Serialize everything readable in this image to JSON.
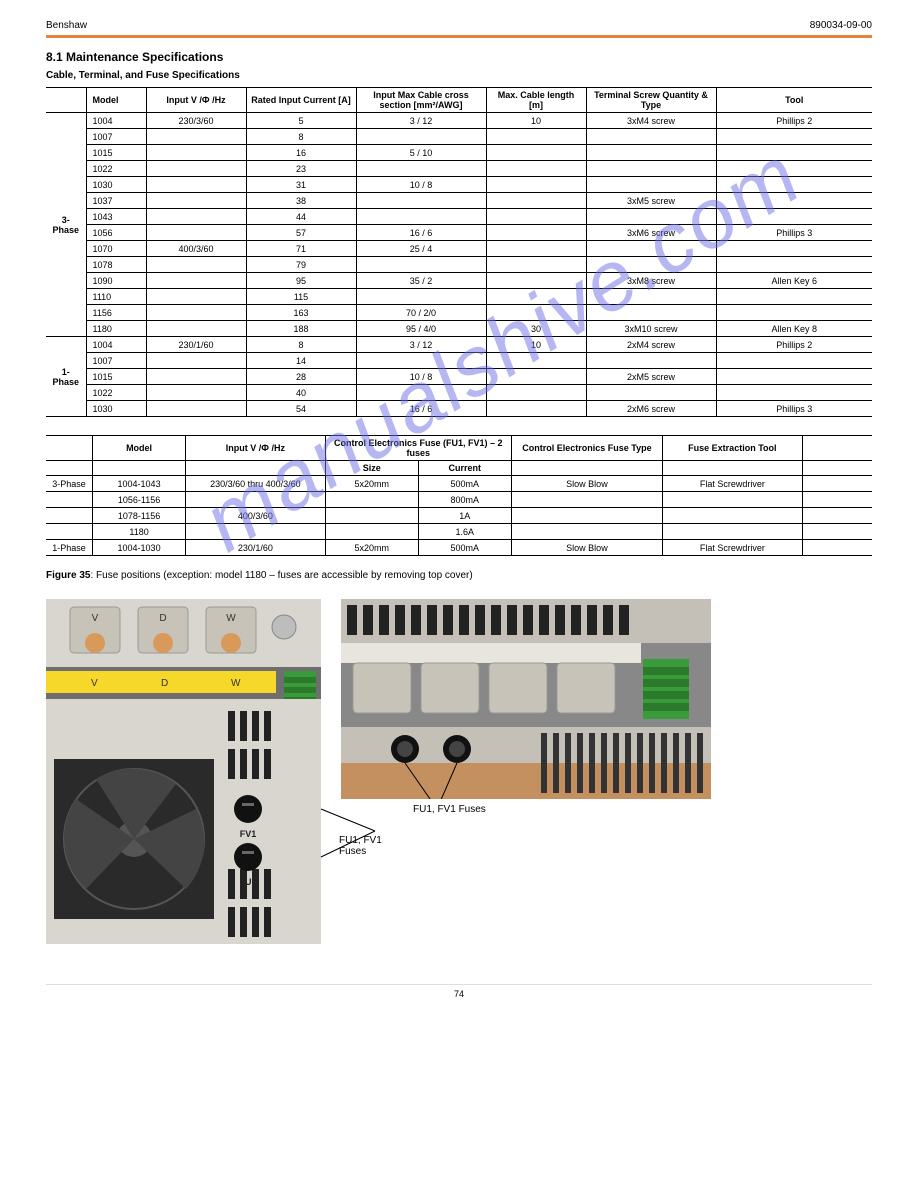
{
  "header": {
    "company": "Benshaw",
    "doc": "890034-09-00"
  },
  "section": {
    "num_title": "8.1 Maintenance Specifications",
    "sub": "Cable, Terminal, and Fuse Specifications"
  },
  "table1": {
    "headers": [
      "",
      "Model",
      "Input V /Ф /Hz",
      "Rated Input Current [A]",
      "Input Max Cable cross section [mm²/AWG]",
      "Max. Cable length [m]",
      "Terminal Screw Quantity & Type",
      "Tool"
    ],
    "groups": [
      {
        "ph": "3-Phase",
        "rows": [
          {
            "model": "1004",
            "v": "230/3/60",
            "a": "5",
            "cs": "3 / 12",
            "len": "10",
            "screw": "3xM4 screw",
            "tool": "Phillips 2"
          },
          {
            "model": "1007",
            "v": "",
            "a": "8",
            "cs": "",
            "len": "",
            "screw": "",
            "tool": ""
          },
          {
            "model": "1015",
            "v": "",
            "a": "16",
            "cs": "5 / 10",
            "len": "",
            "screw": "",
            "tool": ""
          },
          {
            "model": "1022",
            "v": "",
            "a": "23",
            "cs": "",
            "len": "",
            "screw": "",
            "tool": ""
          },
          {
            "model": "1030",
            "v": "",
            "a": "31",
            "cs": "10 / 8",
            "len": "",
            "screw": "",
            "tool": ""
          },
          {
            "model": "1037",
            "v": "",
            "a": "38",
            "cs": "",
            "len": "",
            "screw": "3xM5 screw",
            "tool": ""
          },
          {
            "model": "1043",
            "v": "",
            "a": "44",
            "cs": "",
            "len": "",
            "screw": "",
            "tool": ""
          },
          {
            "model": "1056",
            "v": "",
            "a": "57",
            "cs": "16 / 6",
            "len": "",
            "screw": "3xM6 screw",
            "tool": "Phillips 3"
          },
          {
            "model": "1070",
            "v": "400/3/60",
            "a": "71",
            "cs": "25 / 4",
            "len": "",
            "screw": "",
            "tool": ""
          },
          {
            "model": "1078",
            "v": "",
            "a": "79",
            "cs": "",
            "len": "",
            "screw": "",
            "tool": ""
          },
          {
            "model": "1090",
            "v": "",
            "a": "95",
            "cs": "35 / 2",
            "len": "",
            "screw": "3xM8 screw",
            "tool": "Allen Key 6"
          },
          {
            "model": "1110",
            "v": "",
            "a": "115",
            "cs": "",
            "len": "",
            "screw": "",
            "tool": ""
          },
          {
            "model": "1156",
            "v": "",
            "a": "163",
            "cs": "70 / 2/0",
            "len": "",
            "screw": "",
            "tool": ""
          },
          {
            "model": "1180",
            "v": "",
            "a": "188",
            "cs": "95 / 4/0",
            "len": "30",
            "screw": "3xM10 screw",
            "tool": "Allen Key 8"
          }
        ]
      },
      {
        "ph": "1-Phase",
        "rows": [
          {
            "model": "1004",
            "v": "230/1/60",
            "a": "8",
            "cs": "3 / 12",
            "len": "10",
            "screw": "2xM4 screw",
            "tool": "Phillips 2"
          },
          {
            "model": "1007",
            "v": "",
            "a": "14",
            "cs": "",
            "len": "",
            "screw": "",
            "tool": ""
          },
          {
            "model": "1015",
            "v": "",
            "a": "28",
            "cs": "10 / 8",
            "len": "",
            "screw": "2xM5 screw",
            "tool": ""
          },
          {
            "model": "1022",
            "v": "",
            "a": "40",
            "cs": "",
            "len": "",
            "screw": "",
            "tool": ""
          },
          {
            "model": "1030",
            "v": "",
            "a": "54",
            "cs": "16 / 6",
            "len": "",
            "screw": "2xM6 screw",
            "tool": "Phillips 3"
          }
        ]
      }
    ]
  },
  "table2": {
    "headers": [
      "",
      "Model",
      "Input V /Ф /Hz",
      "Control Electronics Fuse (FU1, FV1) – 2 fuses",
      "",
      "Control Electronics Fuse Type",
      "Fuse Extraction Tool",
      ""
    ],
    "subheaders": [
      "",
      "",
      "",
      "Size",
      "Current",
      "",
      "",
      ""
    ],
    "rows": [
      {
        "ph": "3-Phase",
        "model": "1004-1043",
        "v": "230/3/60 thru 400/3/60",
        "size": "5x20mm",
        "cur": "500mA",
        "type": "Slow Blow",
        "tool": "Flat Screwdriver",
        "extra": ""
      },
      {
        "ph": "",
        "model": "1056-1156",
        "v": "",
        "size": "",
        "cur": "800mA",
        "type": "",
        "tool": "",
        "extra": ""
      },
      {
        "ph": "",
        "model": "1078-1156",
        "v": "400/3/60",
        "size": "",
        "cur": "1A",
        "type": "",
        "tool": "",
        "extra": ""
      },
      {
        "ph": "",
        "model": "1180",
        "v": "",
        "size": "",
        "cur": "1.6A",
        "type": "",
        "tool": "",
        "extra": ""
      },
      {
        "ph": "1-Phase",
        "model": "1004-1030",
        "v": "230/1/60",
        "size": "5x20mm",
        "cur": "500mA",
        "type": "Slow Blow",
        "tool": "Flat Screwdriver",
        "extra": ""
      }
    ]
  },
  "figure": {
    "caption_prefix": "Figure 35",
    "caption": ": Fuse positions (exception: model 1180 – fuses are accessible by removing top cover)",
    "label1": "FU1, FV1 Fuses",
    "label2": "FU1, FV1 Fuses"
  },
  "footer": {
    "page": "74"
  }
}
